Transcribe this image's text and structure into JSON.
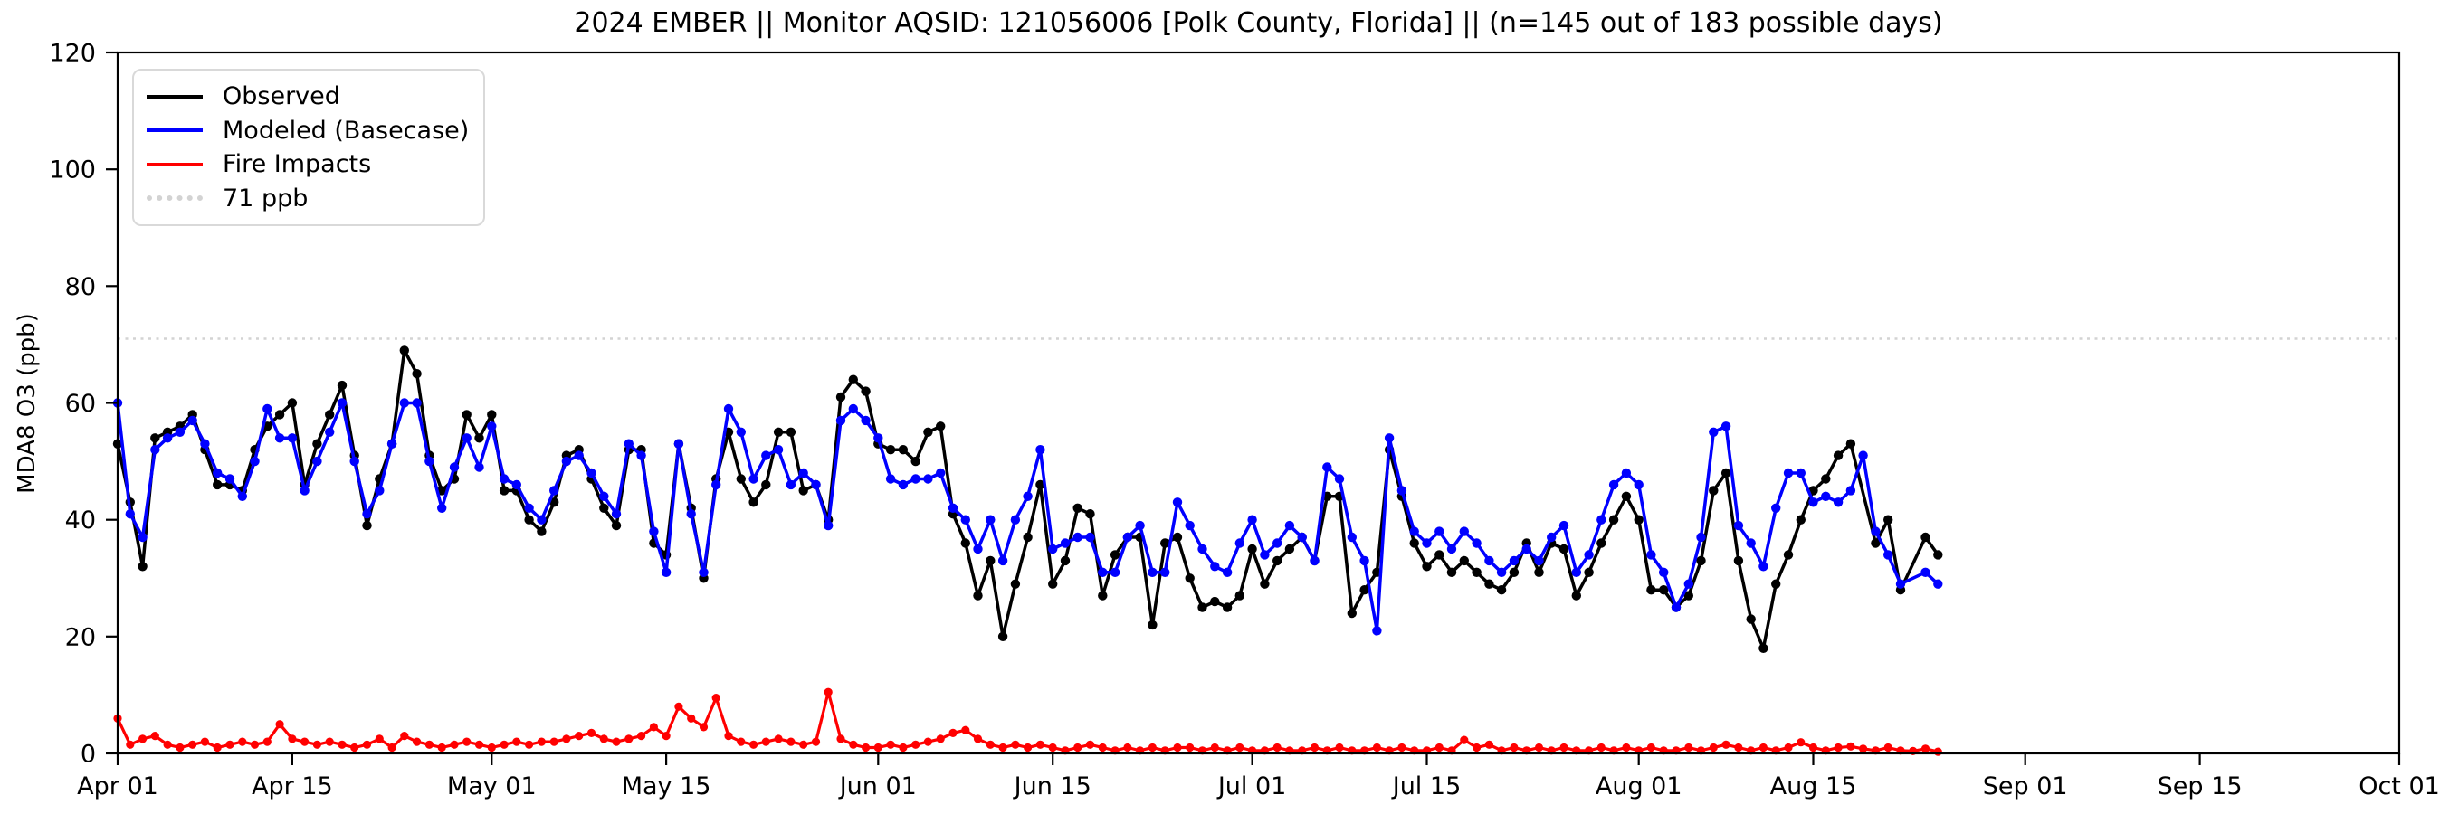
{
  "title": "2024 EMBER || Monitor AQSID: 121056006 [Polk County, Florida] || (n=145 out of 183 possible days)",
  "y_axis": {
    "label": "MDA8 O3 (ppb)",
    "ticks": [
      0,
      20,
      40,
      60,
      80,
      100,
      120
    ],
    "min": 0,
    "max": 120
  },
  "x_axis": {
    "total_days": 183,
    "ticks": [
      {
        "label": "Apr 01",
        "day": 0
      },
      {
        "label": "Apr 15",
        "day": 14
      },
      {
        "label": "May 01",
        "day": 30
      },
      {
        "label": "May 15",
        "day": 44
      },
      {
        "label": "Jun 01",
        "day": 61
      },
      {
        "label": "Jun 15",
        "day": 75
      },
      {
        "label": "Jul 01",
        "day": 91
      },
      {
        "label": "Jul 15",
        "day": 105
      },
      {
        "label": "Aug 01",
        "day": 122
      },
      {
        "label": "Aug 15",
        "day": 136
      },
      {
        "label": "Sep 01",
        "day": 153
      },
      {
        "label": "Sep 15",
        "day": 167
      },
      {
        "label": "Oct 01",
        "day": 183
      }
    ]
  },
  "legend": [
    {
      "label": "Observed",
      "color": "#000000",
      "style": "solid"
    },
    {
      "label": "Modeled (Basecase)",
      "color": "#0000ff",
      "style": "solid"
    },
    {
      "label": "Fire Impacts",
      "color": "#ff0000",
      "style": "solid"
    },
    {
      "label": "71 ppb",
      "color": "#d3d3d3",
      "style": "dotted"
    }
  ],
  "chart_data": {
    "type": "line",
    "title": "2024 EMBER || Monitor AQSID: 121056006 [Polk County, Florida] || (n=145 out of 183 possible days)",
    "xlabel": "",
    "ylabel": "MDA8 O3 (ppb)",
    "ylim": [
      0,
      120
    ],
    "x_range": [
      "Apr 01",
      "Oct 01"
    ],
    "data_start": "Apr 01",
    "data_end": "Aug 25",
    "observed_day_count": 145,
    "possible_day_count": 183,
    "grid": false,
    "legend_position": "upper left",
    "reference_line": {
      "label": "71 ppb",
      "value": 71,
      "color": "#d3d3d3",
      "style": "dotted"
    },
    "series": [
      {
        "name": "Observed",
        "color": "#000000",
        "width": 3.5,
        "marker": 5.2,
        "values": [
          53,
          43,
          32,
          54,
          55,
          56,
          58,
          52,
          46,
          46,
          45,
          52,
          56,
          58,
          60,
          46,
          53,
          58,
          63,
          51,
          39,
          47,
          53,
          69,
          65,
          51,
          45,
          47,
          58,
          54,
          58,
          45,
          45,
          40,
          38,
          43,
          51,
          52,
          47,
          42,
          39,
          52,
          52,
          36,
          34,
          53,
          42,
          30,
          47,
          55,
          47,
          43,
          46,
          55,
          55,
          45,
          46,
          40,
          61,
          64,
          62,
          53,
          52,
          52,
          50,
          55,
          56,
          41,
          36,
          27,
          33,
          20,
          29,
          37,
          46,
          29,
          33,
          42,
          41,
          27,
          34,
          37,
          37,
          22,
          36,
          37,
          30,
          25,
          26,
          25,
          27,
          35,
          29,
          33,
          35,
          37,
          33,
          44,
          44,
          24,
          28,
          31,
          52,
          44,
          36,
          32,
          34,
          31,
          33,
          31,
          29,
          28,
          31,
          36,
          31,
          36,
          35,
          27,
          31,
          36,
          40,
          44,
          40,
          28,
          28,
          25,
          27,
          33,
          45,
          48,
          33,
          23,
          18,
          29,
          34,
          40,
          45,
          47,
          51,
          53,
          null,
          36,
          40,
          28,
          null,
          37,
          34
        ]
      },
      {
        "name": "Modeled (Basecase)",
        "color": "#0000ff",
        "width": 3.5,
        "marker": 5.2,
        "values": [
          60,
          41,
          37,
          52,
          54,
          55,
          57,
          53,
          48,
          47,
          44,
          50,
          59,
          54,
          54,
          45,
          50,
          55,
          60,
          50,
          41,
          45,
          53,
          60,
          60,
          50,
          42,
          49,
          54,
          49,
          56,
          47,
          46,
          42,
          40,
          45,
          50,
          51,
          48,
          44,
          41,
          53,
          51,
          38,
          31,
          53,
          41,
          31,
          46,
          59,
          55,
          47,
          51,
          52,
          46,
          48,
          46,
          39,
          57,
          59,
          57,
          54,
          47,
          46,
          47,
          47,
          48,
          42,
          40,
          35,
          40,
          33,
          40,
          44,
          52,
          35,
          36,
          37,
          37,
          31,
          31,
          37,
          39,
          31,
          31,
          43,
          39,
          35,
          32,
          31,
          36,
          40,
          34,
          36,
          39,
          37,
          33,
          49,
          47,
          37,
          33,
          21,
          54,
          45,
          38,
          36,
          38,
          35,
          38,
          36,
          33,
          31,
          33,
          35,
          33,
          37,
          39,
          31,
          34,
          40,
          46,
          48,
          46,
          34,
          31,
          25,
          29,
          37,
          55,
          56,
          39,
          36,
          32,
          42,
          48,
          48,
          43,
          44,
          43,
          45,
          51,
          38,
          34,
          29,
          null,
          31,
          29
        ]
      },
      {
        "name": "Fire Impacts",
        "color": "#ff0000",
        "width": 3.2,
        "marker": 4.6,
        "values": [
          6,
          1.5,
          2.5,
          3,
          1.5,
          1,
          1.5,
          2,
          1,
          1.5,
          2,
          1.5,
          2,
          5,
          2.5,
          2,
          1.5,
          2,
          1.5,
          1,
          1.5,
          2.5,
          1,
          3,
          2,
          1.5,
          1,
          1.5,
          2,
          1.5,
          1,
          1.5,
          2,
          1.5,
          2,
          2,
          2.5,
          3,
          3.5,
          2.5,
          2,
          2.5,
          3,
          4.5,
          3,
          8,
          6,
          4.5,
          9.5,
          3,
          2,
          1.5,
          2,
          2.5,
          2,
          1.5,
          2,
          10.5,
          2.5,
          1.5,
          1,
          1,
          1.5,
          1,
          1.5,
          2,
          2.5,
          3.5,
          4,
          2.5,
          1.5,
          1,
          1.5,
          1,
          1.5,
          1,
          0.5,
          1,
          1.5,
          1,
          0.5,
          1,
          0.5,
          1,
          0.5,
          1,
          1,
          0.5,
          1,
          0.5,
          1,
          0.5,
          0.5,
          1,
          0.5,
          0.5,
          1,
          0.5,
          1,
          0.5,
          0.5,
          1,
          0.5,
          1,
          0.5,
          0.5,
          1,
          0.5,
          2.3,
          1,
          1.5,
          0.5,
          1,
          0.5,
          1,
          0.5,
          1,
          0.5,
          0.5,
          1,
          0.5,
          1,
          0.5,
          1,
          0.5,
          0.5,
          1,
          0.5,
          1,
          1.5,
          1,
          0.5,
          1,
          0.5,
          1,
          1.9,
          1,
          0.5,
          1,
          1.2,
          0.8,
          0.5,
          1,
          0.5,
          0.4,
          0.8,
          0.3
        ]
      }
    ]
  }
}
